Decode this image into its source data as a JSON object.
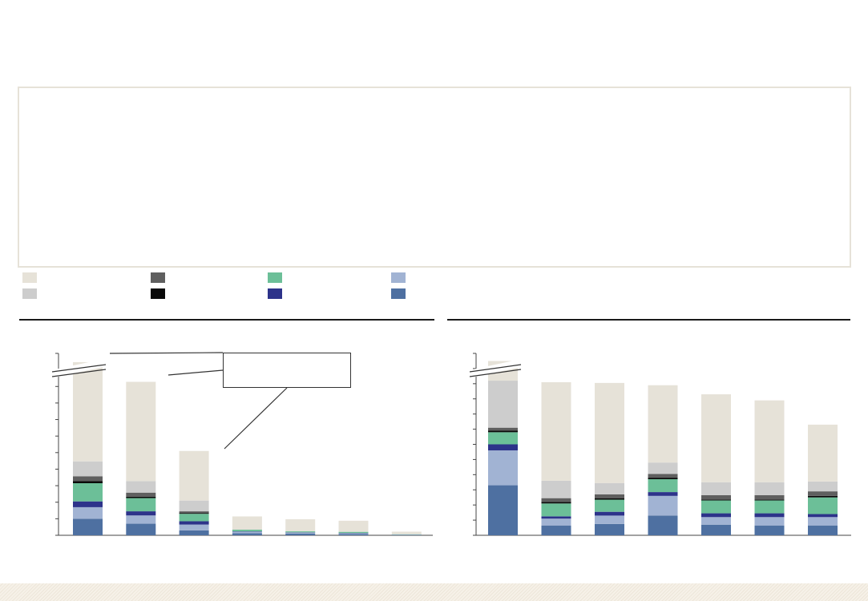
{
  "legend": [
    {
      "color": "#e6e2d8"
    },
    {
      "color": "#cdcdcd"
    },
    {
      "color": "#5f5f5f"
    },
    {
      "color": "#0a0a0a"
    },
    {
      "color": "#6cbf98"
    },
    {
      "color": "#2d338a"
    },
    {
      "color": "#a1b3d3"
    },
    {
      "color": "#4e70a1"
    }
  ],
  "chart_data": [
    {
      "type": "bar",
      "stacked": true,
      "axis_break": true,
      "ylim": [
        0,
        11
      ],
      "grid": false,
      "series": [
        {
          "color": "#4e70a1",
          "values": [
            1.0,
            0.7,
            0.3,
            0.12,
            0.1,
            0.07,
            0.02
          ]
        },
        {
          "color": "#a1b3d3",
          "values": [
            0.7,
            0.5,
            0.35,
            0.1,
            0.06,
            0.05,
            0.02
          ]
        },
        {
          "color": "#2d338a",
          "values": [
            0.35,
            0.25,
            0.2,
            0.02,
            0.02,
            0.02,
            0.0
          ]
        },
        {
          "color": "#6cbf98",
          "values": [
            1.1,
            0.8,
            0.45,
            0.1,
            0.06,
            0.07,
            0.02
          ]
        },
        {
          "color": "#0a0a0a",
          "values": [
            0.12,
            0.08,
            0.05,
            0.0,
            0.0,
            0.0,
            0.0
          ]
        },
        {
          "color": "#5f5f5f",
          "values": [
            0.3,
            0.25,
            0.1,
            0.0,
            0.0,
            0.0,
            0.0
          ]
        },
        {
          "color": "#cdcdcd",
          "values": [
            0.9,
            0.7,
            0.65,
            0.0,
            0.0,
            0.0,
            0.0
          ]
        },
        {
          "color": "#e6e2d8",
          "values": [
            6.0,
            6.0,
            3.0,
            0.8,
            0.73,
            0.67,
            0.16
          ]
        }
      ]
    },
    {
      "type": "bar",
      "stacked": true,
      "axis_break": true,
      "ylim": [
        0,
        12
      ],
      "grid": false,
      "series": [
        {
          "color": "#4e70a1",
          "values": [
            3.3,
            0.65,
            0.75,
            1.3,
            0.7,
            0.65,
            0.65
          ]
        },
        {
          "color": "#a1b3d3",
          "values": [
            2.3,
            0.45,
            0.55,
            1.3,
            0.5,
            0.55,
            0.55
          ]
        },
        {
          "color": "#2d338a",
          "values": [
            0.4,
            0.15,
            0.25,
            0.25,
            0.25,
            0.25,
            0.2
          ]
        },
        {
          "color": "#6cbf98",
          "values": [
            0.8,
            0.85,
            0.8,
            0.85,
            0.85,
            0.85,
            1.1
          ]
        },
        {
          "color": "#0a0a0a",
          "values": [
            0.1,
            0.1,
            0.1,
            0.1,
            0.05,
            0.05,
            0.1
          ]
        },
        {
          "color": "#5f5f5f",
          "values": [
            0.2,
            0.25,
            0.25,
            0.25,
            0.3,
            0.3,
            0.3
          ]
        },
        {
          "color": "#cdcdcd",
          "values": [
            3.1,
            1.15,
            0.75,
            0.75,
            0.85,
            0.85,
            0.65
          ]
        },
        {
          "color": "#e6e2d8",
          "values": [
            1.3,
            6.5,
            6.6,
            5.1,
            5.8,
            5.4,
            3.75
          ]
        }
      ]
    }
  ]
}
